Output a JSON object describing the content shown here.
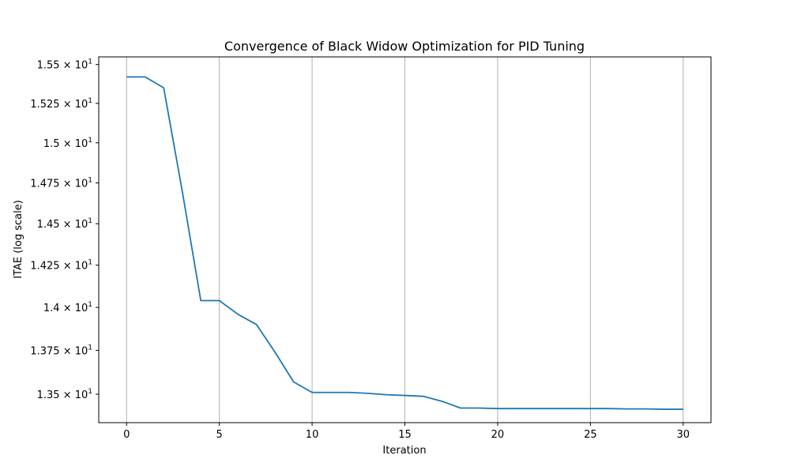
{
  "chart_data": {
    "type": "line",
    "title": "Convergence of Black Widow Optimization for PID Tuning",
    "xlabel": "Iteration",
    "ylabel": "ITAE (log scale)",
    "yscale": "log",
    "xlim": [
      -1.5,
      31.5
    ],
    "ylim": [
      13.34,
      15.55
    ],
    "grid": "vertical",
    "x_ticks": [
      0,
      5,
      10,
      15,
      20,
      25,
      30
    ],
    "x_tick_labels": [
      "0",
      "5",
      "10",
      "15",
      "20",
      "25",
      "30"
    ],
    "y_ticks": [
      13.5,
      13.75,
      14.0,
      14.25,
      14.5,
      14.75,
      15.0,
      15.25,
      15.5
    ],
    "y_tick_mantissas": [
      "1.35",
      "1.375",
      "1.4",
      "1.425",
      "1.45",
      "1.475",
      "1.5",
      "1.525",
      "1.55"
    ],
    "y_tick_base": "10",
    "y_tick_exponent": "1",
    "series": [
      {
        "color": "#1f77b4",
        "x": [
          0,
          1,
          2,
          3,
          4,
          5,
          6,
          7,
          8,
          9,
          10,
          11,
          12,
          13,
          14,
          15,
          16,
          17,
          18,
          19,
          20,
          21,
          22,
          23,
          24,
          25,
          26,
          27,
          28,
          29,
          30
        ],
        "y": [
          15.42,
          15.42,
          15.35,
          14.7,
          14.04,
          14.04,
          13.96,
          13.9,
          13.74,
          13.57,
          13.51,
          13.51,
          13.51,
          13.505,
          13.497,
          13.493,
          13.488,
          13.46,
          13.422,
          13.422,
          13.419,
          13.419,
          13.419,
          13.419,
          13.419,
          13.419,
          13.419,
          13.417,
          13.417,
          13.415,
          13.415
        ]
      }
    ]
  }
}
